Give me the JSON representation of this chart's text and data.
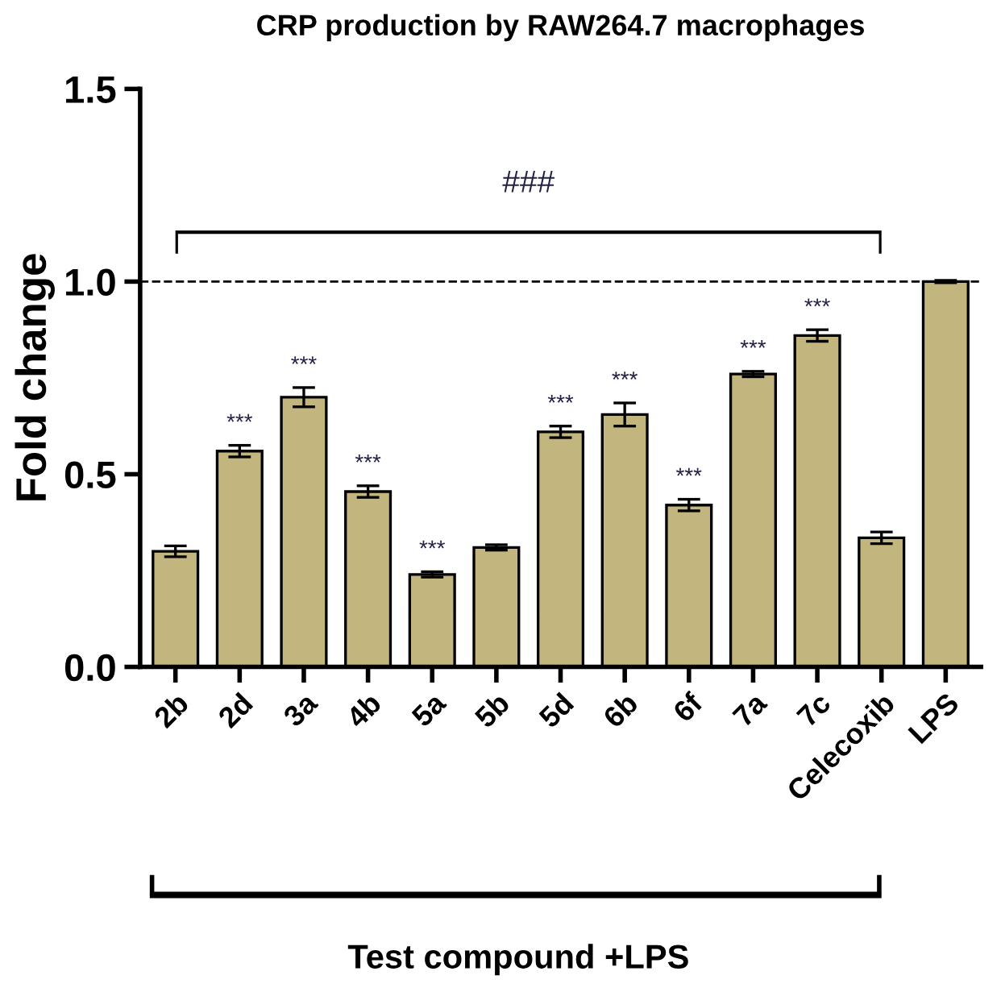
{
  "chart_data": {
    "type": "bar",
    "title": "CRP production by RAW264.7 macrophages",
    "xlabel": "Test compound +LPS",
    "ylabel": "Fold change",
    "categories": [
      "2b",
      "2d",
      "3a",
      "4b",
      "5a",
      "5b",
      "5d",
      "6b",
      "6f",
      "7a",
      "7c",
      "Celecoxib",
      "LPS"
    ],
    "values": [
      0.3,
      0.56,
      0.7,
      0.455,
      0.24,
      0.31,
      0.61,
      0.655,
      0.42,
      0.76,
      0.86,
      0.335,
      1.0
    ],
    "errors": [
      0.014,
      0.015,
      0.025,
      0.015,
      0.007,
      0.007,
      0.015,
      0.03,
      0.015,
      0.007,
      0.015,
      0.015,
      0.003
    ],
    "color": "#c2b67e",
    "ylim": [
      0,
      1.5
    ],
    "yticks": [
      {
        "value": 0,
        "label": "0.0"
      },
      {
        "value": 0.5,
        "label": "0.5"
      },
      {
        "value": 1,
        "label": "1.0"
      },
      {
        "value": 1.5,
        "label": "1.5"
      }
    ],
    "grid": false,
    "value_labels": [
      null,
      "***",
      "***",
      "***",
      "***",
      null,
      "***",
      "***",
      "***",
      "***",
      "***",
      null,
      null
    ],
    "ref_lines": [
      {
        "axis": "y",
        "value": 1.0,
        "line_style": "dashed",
        "color": "#000000"
      }
    ],
    "annotations": [
      "###"
    ]
  }
}
